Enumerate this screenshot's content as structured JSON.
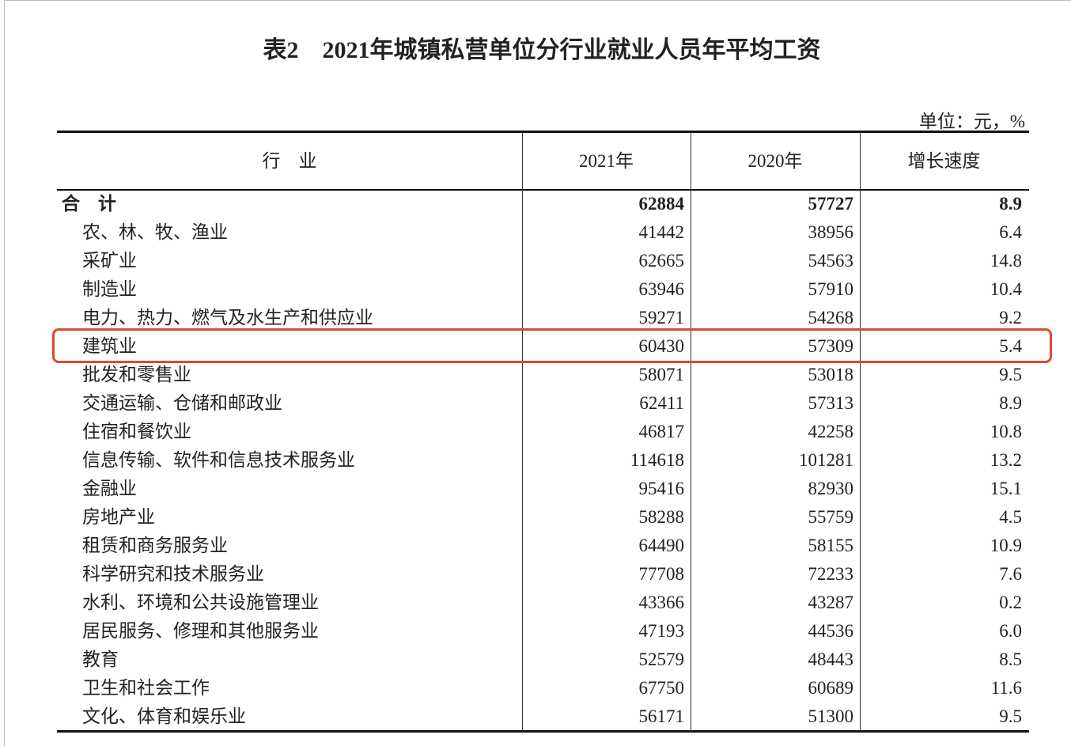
{
  "title": "表2　2021年城镇私营单位分行业就业人员年平均工资",
  "unit": "单位：元，%",
  "table": {
    "header": [
      "行　业",
      "2021年",
      "2020年",
      "增长速度"
    ],
    "rows": [
      [
        "合　计",
        "62884",
        "57727",
        "8.9"
      ],
      [
        "农、林、牧、渔业",
        "41442",
        "38956",
        "6.4"
      ],
      [
        "采矿业",
        "62665",
        "54563",
        "14.8"
      ],
      [
        "制造业",
        "63946",
        "57910",
        "10.4"
      ],
      [
        "电力、热力、燃气及水生产和供应业",
        "59271",
        "54268",
        "9.2"
      ],
      [
        "建筑业",
        "60430",
        "57309",
        "5.4"
      ],
      [
        "批发和零售业",
        "58071",
        "53018",
        "9.5"
      ],
      [
        "交通运输、仓储和邮政业",
        "62411",
        "57313",
        "8.9"
      ],
      [
        "住宿和餐饮业",
        "46817",
        "42258",
        "10.8"
      ],
      [
        "信息传输、软件和信息技术服务业",
        "114618",
        "101281",
        "13.2"
      ],
      [
        "金融业",
        "95416",
        "82930",
        "15.1"
      ],
      [
        "房地产业",
        "58288",
        "55759",
        "4.5"
      ],
      [
        "租赁和商务服务业",
        "64490",
        "58155",
        "10.9"
      ],
      [
        "科学研究和技术服务业",
        "77708",
        "72233",
        "7.6"
      ],
      [
        "水利、环境和公共设施管理业",
        "43366",
        "43287",
        "0.2"
      ],
      [
        "居民服务、修理和其他服务业",
        "47193",
        "44536",
        "6.0"
      ],
      [
        "教育",
        "52579",
        "48443",
        "8.5"
      ],
      [
        "卫生和社会工作",
        "67750",
        "60689",
        "11.6"
      ],
      [
        "文化、体育和娱乐业",
        "56171",
        "51300",
        "9.5"
      ]
    ]
  }
}
